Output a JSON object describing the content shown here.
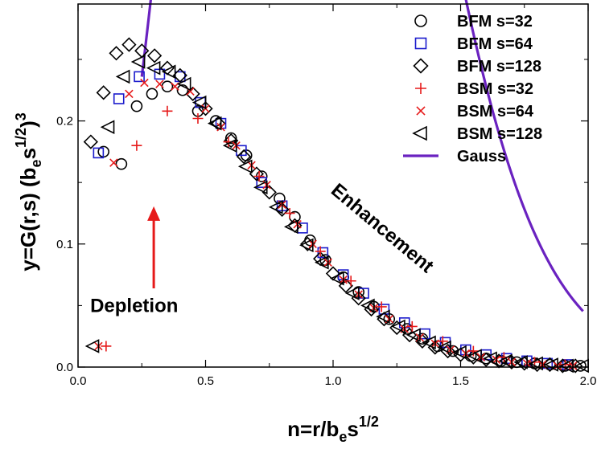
{
  "chart_data": {
    "type": "scatter",
    "title": "",
    "xlabel": {
      "main": "n=r/b",
      "sub": "e",
      "mid": "s",
      "sup": "1/2"
    },
    "ylabel": {
      "main": "y=G(r,s) (b",
      "sub": "e",
      "mid": "s",
      "sup": "1/2",
      "close": ")",
      "sup2": "3"
    },
    "xlim": [
      0,
      2.0
    ],
    "ylim": [
      0,
      0.295
    ],
    "xticks": [
      {
        "v": 0.0,
        "label": "0.0"
      },
      {
        "v": 0.5,
        "label": "0.5"
      },
      {
        "v": 1.0,
        "label": "1.0"
      },
      {
        "v": 1.5,
        "label": "1.5"
      },
      {
        "v": 2.0,
        "label": "2.0"
      }
    ],
    "yticks": [
      {
        "v": 0.0,
        "label": "0.0"
      },
      {
        "v": 0.1,
        "label": "0.1"
      },
      {
        "v": 0.2,
        "label": "0.2"
      }
    ],
    "legend_position": "top-right",
    "series": [
      {
        "name": "BFM s=32",
        "marker": "circle",
        "color": "#000000",
        "x": [
          0.1,
          0.17,
          0.23,
          0.29,
          0.35,
          0.41,
          0.47,
          0.54,
          0.6,
          0.66,
          0.72,
          0.79,
          0.85,
          0.91,
          0.97,
          1.04,
          1.1,
          1.16,
          1.22,
          1.29,
          1.35,
          1.41,
          1.47,
          1.54,
          1.6,
          1.66,
          1.72,
          1.79,
          1.85,
          1.91,
          1.97
        ],
        "y": [
          0.175,
          0.165,
          0.212,
          0.222,
          0.228,
          0.225,
          0.208,
          0.2,
          0.186,
          0.172,
          0.155,
          0.137,
          0.122,
          0.103,
          0.087,
          0.073,
          0.061,
          0.049,
          0.039,
          0.031,
          0.023,
          0.017,
          0.013,
          0.009,
          0.007,
          0.005,
          0.004,
          0.003,
          0.002,
          0.001,
          0.001
        ]
      },
      {
        "name": "BFM s=64",
        "marker": "square",
        "color": "#1a1acc",
        "x": [
          0.08,
          0.16,
          0.24,
          0.32,
          0.4,
          0.48,
          0.56,
          0.64,
          0.72,
          0.8,
          0.88,
          0.96,
          1.04,
          1.12,
          1.2,
          1.28,
          1.36,
          1.44,
          1.52,
          1.6,
          1.68,
          1.76,
          1.84,
          1.92
        ],
        "y": [
          0.174,
          0.218,
          0.236,
          0.238,
          0.236,
          0.215,
          0.198,
          0.176,
          0.15,
          0.131,
          0.113,
          0.093,
          0.075,
          0.06,
          0.047,
          0.036,
          0.027,
          0.02,
          0.014,
          0.01,
          0.007,
          0.005,
          0.003,
          0.002
        ]
      },
      {
        "name": "BFM s=128",
        "marker": "diamond",
        "color": "#000000",
        "x": [
          0.05,
          0.1,
          0.15,
          0.2,
          0.25,
          0.3,
          0.35,
          0.4,
          0.45,
          0.5,
          0.55,
          0.6,
          0.65,
          0.7,
          0.75,
          0.8,
          0.85,
          0.9,
          0.95,
          1.0,
          1.05,
          1.1,
          1.15,
          1.2,
          1.25,
          1.3,
          1.35,
          1.4,
          1.45,
          1.5,
          1.55,
          1.6,
          1.65,
          1.7,
          1.75,
          1.8,
          1.85,
          1.9,
          1.95
        ],
        "y": [
          0.183,
          0.223,
          0.255,
          0.262,
          0.257,
          0.253,
          0.243,
          0.237,
          0.222,
          0.21,
          0.198,
          0.184,
          0.171,
          0.157,
          0.142,
          0.128,
          0.115,
          0.1,
          0.088,
          0.076,
          0.066,
          0.056,
          0.047,
          0.039,
          0.032,
          0.026,
          0.021,
          0.016,
          0.013,
          0.01,
          0.008,
          0.006,
          0.005,
          0.004,
          0.003,
          0.002,
          0.002,
          0.001,
          0.001
        ]
      },
      {
        "name": "BSM s=32",
        "marker": "plus",
        "color": "#e61a1a",
        "x": [
          0.11,
          0.23,
          0.35,
          0.47,
          0.59,
          0.71,
          0.83,
          0.95,
          1.07,
          1.19,
          1.31,
          1.43,
          1.55,
          1.67,
          1.79,
          1.91
        ],
        "y": [
          0.017,
          0.18,
          0.208,
          0.202,
          0.183,
          0.155,
          0.125,
          0.094,
          0.07,
          0.049,
          0.033,
          0.021,
          0.013,
          0.008,
          0.004,
          0.002
        ]
      },
      {
        "name": "BSM s=64",
        "marker": "cross",
        "color": "#e61a1a",
        "x": [
          0.08,
          0.14,
          0.2,
          0.26,
          0.32,
          0.38,
          0.44,
          0.5,
          0.56,
          0.62,
          0.68,
          0.74,
          0.8,
          0.86,
          0.92,
          0.98,
          1.04,
          1.1,
          1.16,
          1.22,
          1.28,
          1.34,
          1.4,
          1.46,
          1.52,
          1.58,
          1.64,
          1.7,
          1.76,
          1.82,
          1.88,
          1.94
        ],
        "y": [
          0.017,
          0.166,
          0.222,
          0.231,
          0.23,
          0.228,
          0.224,
          0.21,
          0.195,
          0.18,
          0.164,
          0.148,
          0.132,
          0.116,
          0.1,
          0.085,
          0.071,
          0.059,
          0.048,
          0.039,
          0.031,
          0.024,
          0.019,
          0.014,
          0.011,
          0.008,
          0.006,
          0.004,
          0.003,
          0.002,
          0.001,
          0.001
        ]
      },
      {
        "name": "BSM s=128",
        "marker": "triangle-left",
        "color": "#000000",
        "x": [
          0.06,
          0.12,
          0.18,
          0.24,
          0.3,
          0.36,
          0.42,
          0.48,
          0.54,
          0.6,
          0.66,
          0.72,
          0.78,
          0.84,
          0.9,
          0.96,
          1.02,
          1.08,
          1.14,
          1.2,
          1.26,
          1.32,
          1.38,
          1.44,
          1.5,
          1.56,
          1.62,
          1.68,
          1.74,
          1.8,
          1.86,
          1.92,
          1.98
        ],
        "y": [
          0.017,
          0.195,
          0.236,
          0.248,
          0.243,
          0.24,
          0.23,
          0.215,
          0.198,
          0.18,
          0.163,
          0.146,
          0.13,
          0.114,
          0.099,
          0.085,
          0.072,
          0.06,
          0.05,
          0.041,
          0.033,
          0.026,
          0.02,
          0.016,
          0.012,
          0.009,
          0.007,
          0.005,
          0.004,
          0.003,
          0.002,
          0.001,
          0.001
        ]
      },
      {
        "name": "Gauss",
        "marker": "line",
        "color": "#6a22c0",
        "x_start": 0.25,
        "x_end": 1.98
      }
    ],
    "annotations": [
      {
        "text": "Enhancement",
        "color": "#1a8a1a",
        "x": 1.05,
        "y": 0.085,
        "rotate_deg": 40
      },
      {
        "text": "Depletion",
        "color": "#e61a1a",
        "x": 0.3,
        "y": 0.046
      },
      {
        "type": "arrow",
        "color": "#e61a1a",
        "from": [
          0.3,
          0.064
        ],
        "to": [
          0.3,
          0.128
        ]
      }
    ]
  }
}
